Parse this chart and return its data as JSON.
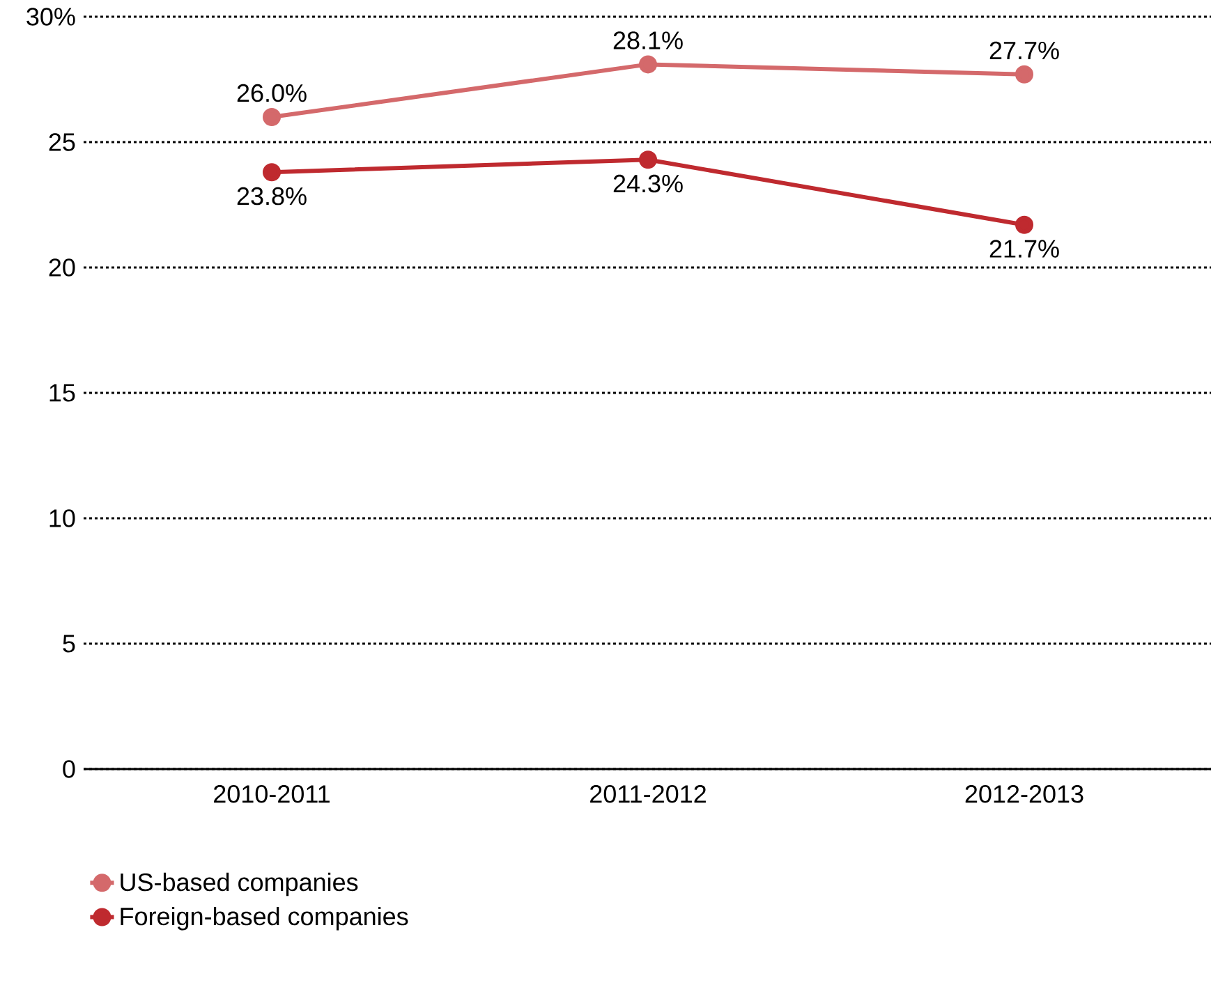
{
  "chart_data": {
    "type": "line",
    "categories": [
      "2010-2011",
      "2011-2012",
      "2012-2013"
    ],
    "series": [
      {
        "name": "US-based companies",
        "color": "#d4696b",
        "values": [
          26.0,
          28.1,
          27.7
        ],
        "value_labels": [
          "26.0%",
          "28.1%",
          "27.7%"
        ]
      },
      {
        "name": "Foreign-based companies",
        "color": "#bf2a2f",
        "values": [
          23.8,
          24.3,
          21.7
        ],
        "value_labels": [
          "23.8%",
          "24.3%",
          "21.7%"
        ]
      }
    ],
    "ylim": [
      0,
      30
    ],
    "yticks": [
      0,
      5,
      10,
      15,
      20,
      25,
      {
        "value": 30,
        "label": "30%"
      }
    ],
    "grid": "y",
    "legend": "bottom left",
    "marker": "circle",
    "line_style": "solid"
  }
}
